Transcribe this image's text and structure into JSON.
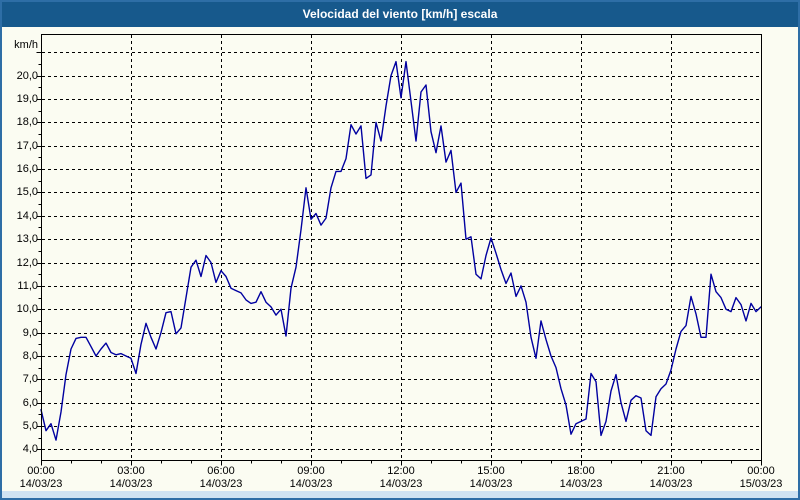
{
  "window": {
    "title": "Velocidad del viento [km/h] escala"
  },
  "colors": {
    "titlebar": "#17598c",
    "frame": "#2e6ea6",
    "page_background": "#d7e7f3",
    "panel_background": "#fbfcf2",
    "bottom_strip": "#cfe3f2",
    "line": "#0101a0",
    "grid": "#000000",
    "label_text": "#000000",
    "title_text": "#ffffff"
  },
  "chart_data": {
    "type": "line",
    "title": "Velocidad del viento [km/h] escala",
    "ylabel": "km/h",
    "ylim": [
      3.5,
      21.8
    ],
    "grid": "dashed black; horizontal every 1 km/h (4,0 to 21,0), vertical every 3 h",
    "legend_position": "none",
    "y_tick_values": [
      4,
      5,
      6,
      7,
      8,
      9,
      10,
      11,
      12,
      13,
      14,
      15,
      16,
      17,
      18,
      19,
      20
    ],
    "y_tick_labels": [
      "4,0",
      "5,0",
      "6,0",
      "7,0",
      "8,0",
      "9,0",
      "10,0",
      "11,0",
      "12,0",
      "13,0",
      "14,0",
      "15,0",
      "16,0",
      "17,0",
      "18,0",
      "19,0",
      "20,0"
    ],
    "x_ticks": [
      {
        "time": "00:00",
        "date": "14/03/23"
      },
      {
        "time": "03:00",
        "date": "14/03/23"
      },
      {
        "time": "06:00",
        "date": "14/03/23"
      },
      {
        "time": "09:00",
        "date": "14/03/23"
      },
      {
        "time": "12:00",
        "date": "14/03/23"
      },
      {
        "time": "15:00",
        "date": "14/03/23"
      },
      {
        "time": "18:00",
        "date": "14/03/23"
      },
      {
        "time": "21:00",
        "date": "14/03/23"
      },
      {
        "time": "00:00",
        "date": "15/03/23"
      }
    ],
    "series": [
      {
        "name": "Velocidad del viento",
        "color": "#0101a0",
        "start": "14/03/23 00:00",
        "end": "15/03/23 00:00",
        "interval_minutes": 10,
        "values": [
          5.7,
          4.8,
          5.1,
          4.4,
          5.6,
          7.2,
          8.3,
          8.75,
          8.8,
          8.8,
          8.4,
          8.0,
          8.3,
          8.55,
          8.15,
          8.05,
          8.1,
          8.0,
          7.9,
          7.25,
          8.5,
          9.4,
          8.8,
          8.3,
          9.0,
          9.85,
          9.9,
          8.95,
          9.2,
          10.5,
          11.8,
          12.1,
          11.4,
          12.3,
          12.0,
          11.15,
          11.65,
          11.4,
          10.9,
          10.8,
          10.7,
          10.4,
          10.25,
          10.3,
          10.75,
          10.3,
          10.1,
          9.75,
          10.0,
          8.85,
          10.9,
          11.8,
          13.4,
          15.2,
          13.85,
          14.1,
          13.6,
          13.9,
          15.2,
          15.9,
          15.9,
          16.45,
          17.9,
          17.5,
          17.85,
          15.6,
          15.75,
          18.0,
          17.2,
          18.7,
          20.0,
          20.6,
          19.05,
          20.6,
          18.9,
          17.2,
          19.3,
          19.6,
          17.6,
          16.7,
          17.85,
          16.3,
          16.8,
          15.0,
          15.4,
          13.0,
          13.1,
          11.5,
          11.3,
          12.3,
          13.05,
          12.4,
          11.7,
          11.1,
          11.55,
          10.55,
          11.0,
          10.3,
          8.8,
          7.9,
          9.5,
          8.7,
          8.0,
          7.5,
          6.6,
          5.9,
          4.65,
          5.1,
          5.2,
          5.3,
          7.25,
          6.9,
          4.6,
          5.2,
          6.5,
          7.2,
          6.0,
          5.2,
          6.1,
          6.3,
          6.2,
          4.8,
          4.6,
          6.25,
          6.6,
          6.8,
          7.4,
          8.3,
          9.05,
          9.3,
          10.55,
          9.8,
          8.8,
          8.8,
          11.5,
          10.75,
          10.5,
          10.0,
          9.9,
          10.5,
          10.2,
          9.5,
          10.25,
          9.9,
          10.1
        ]
      }
    ]
  }
}
